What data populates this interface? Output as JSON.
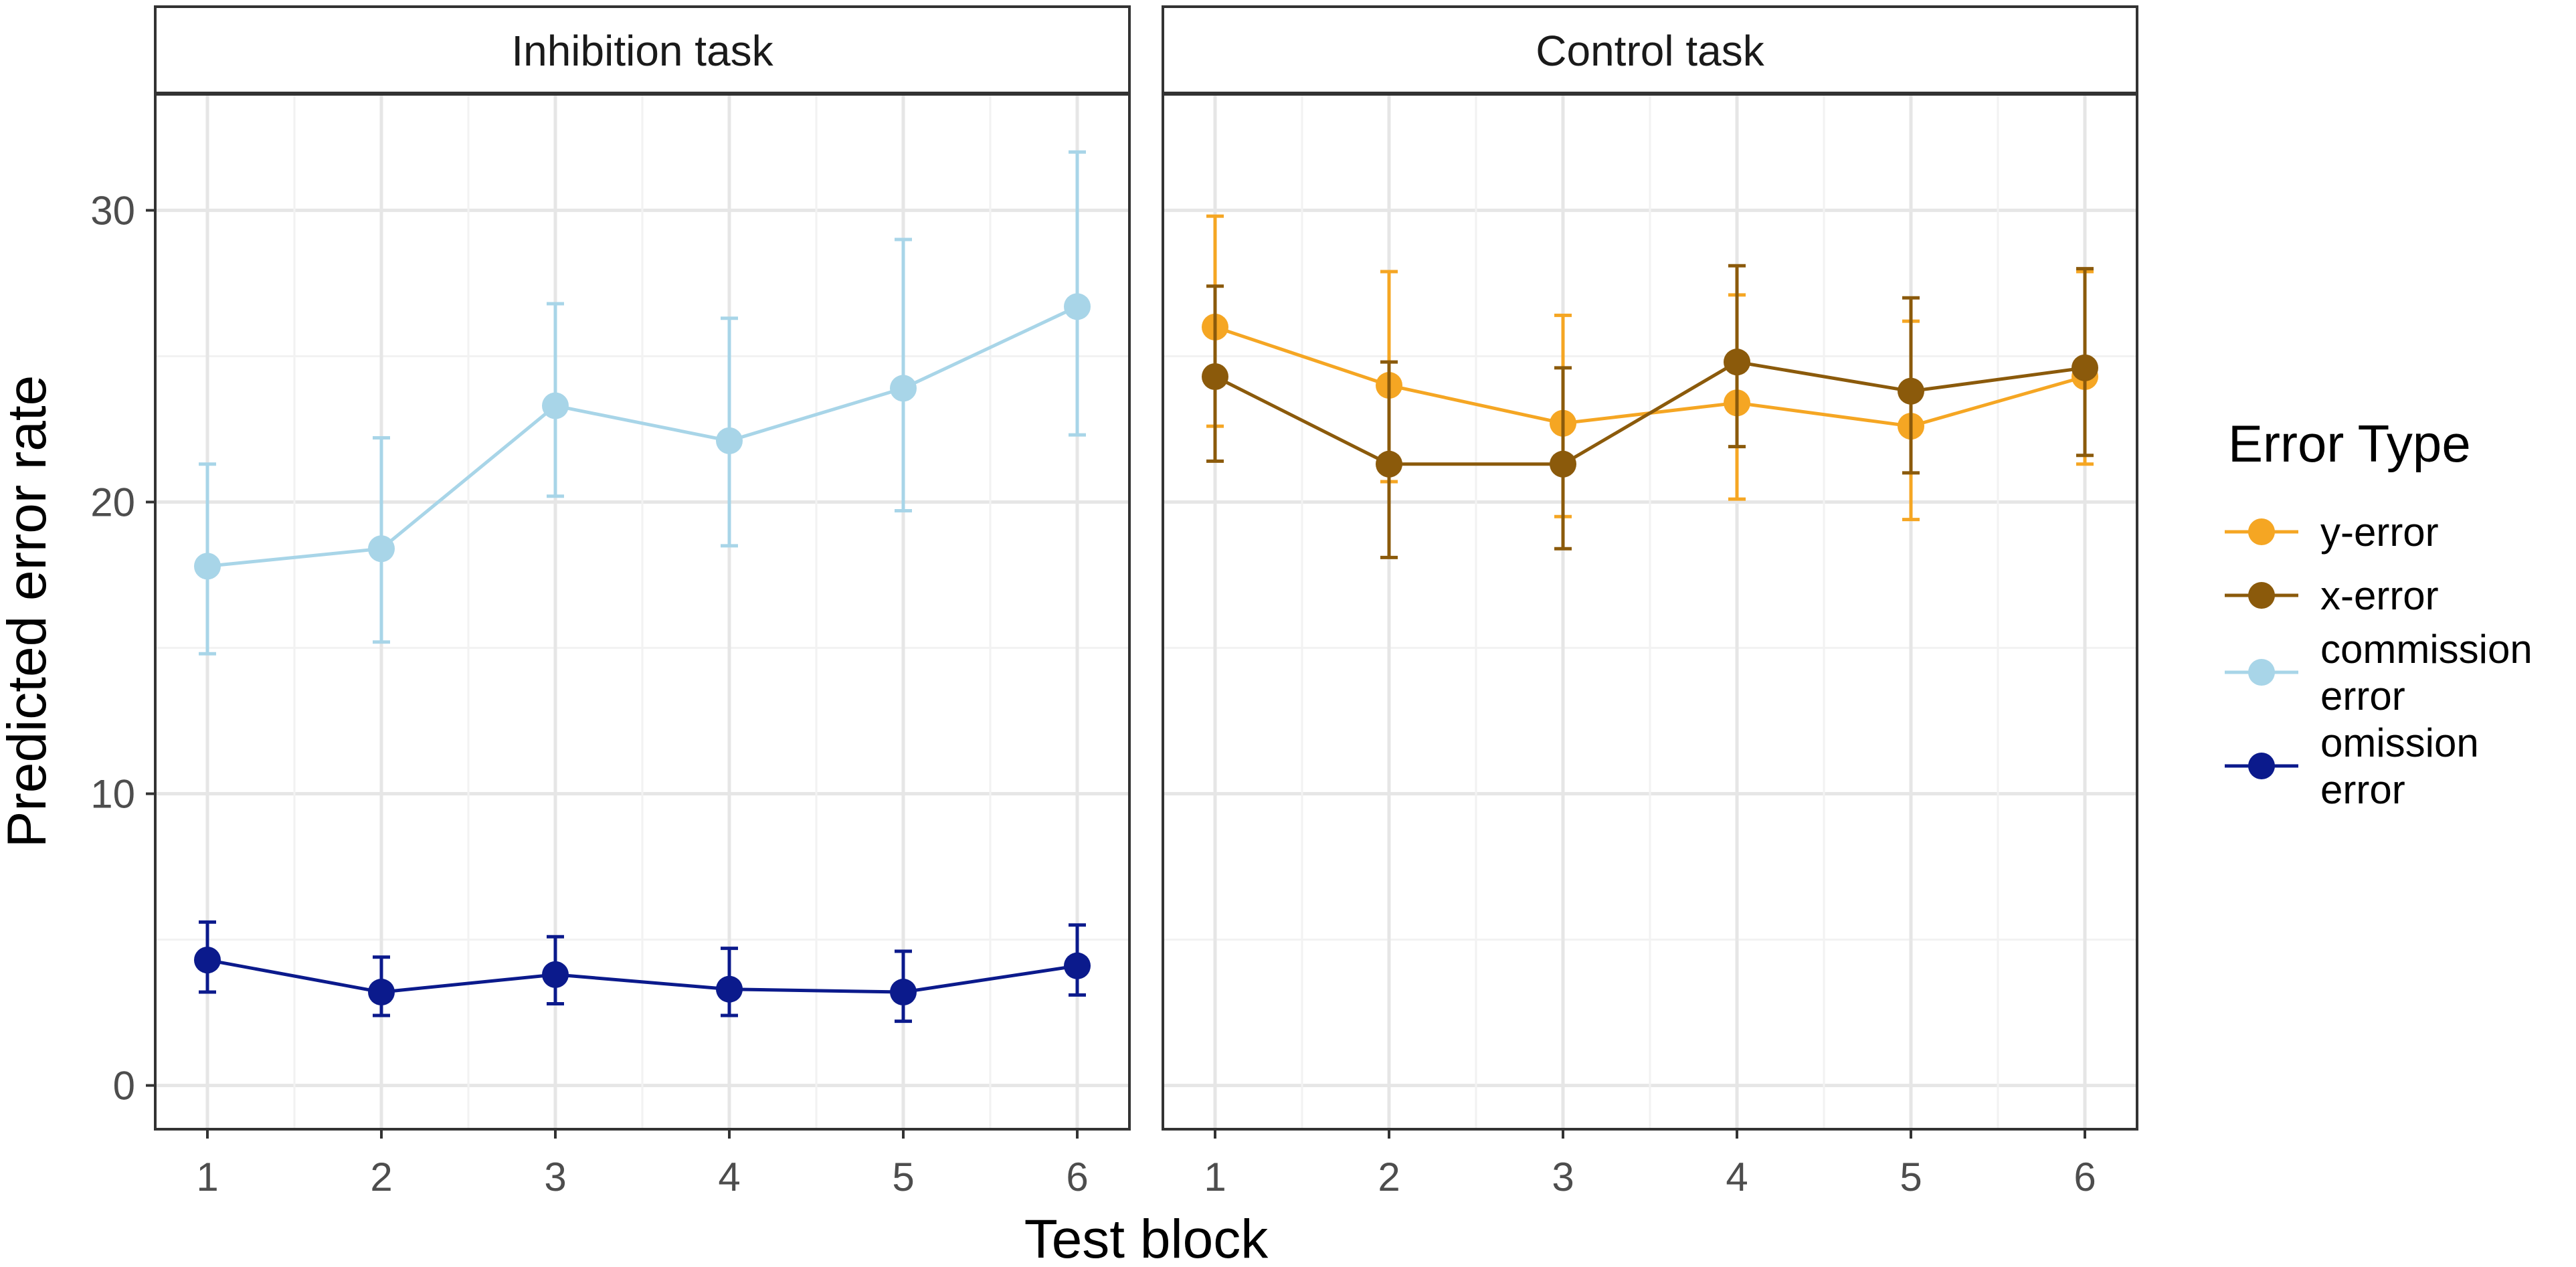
{
  "chart_data": {
    "type": "line",
    "xlabel": "Test block",
    "ylabel": "Predicted error rate",
    "ylim": [
      -1.5,
      34
    ],
    "y_ticks": [
      0,
      10,
      20,
      30
    ],
    "x_ticks": [
      1,
      2,
      3,
      4,
      5,
      6
    ],
    "xlim": [
      0.7,
      6.3
    ],
    "grid": true,
    "legend": {
      "title": "Error Type",
      "placement": "right",
      "entries": [
        {
          "key": "y-error",
          "lines": [
            "y-error"
          ],
          "color": "#F5A623"
        },
        {
          "key": "x-error",
          "lines": [
            "x-error"
          ],
          "color": "#8B5A0B"
        },
        {
          "key": "commission",
          "lines": [
            "commission",
            "error"
          ],
          "color": "#A8D5E8"
        },
        {
          "key": "omission",
          "lines": [
            "omission",
            "error"
          ],
          "color": "#0B1A8C"
        }
      ]
    },
    "panels": [
      {
        "title": "Inhibition task",
        "series": [
          {
            "name": "commission error",
            "key": "commission",
            "color": "#A8D5E8",
            "x": [
              1,
              2,
              3,
              4,
              5,
              6
            ],
            "values": [
              17.8,
              18.4,
              23.3,
              22.1,
              23.9,
              26.7
            ],
            "lower": [
              14.8,
              15.2,
              20.2,
              18.5,
              19.7,
              22.3
            ],
            "upper": [
              21.3,
              22.2,
              26.8,
              26.3,
              29.0,
              32.0
            ]
          },
          {
            "name": "omission error",
            "key": "omission",
            "color": "#0B1A8C",
            "x": [
              1,
              2,
              3,
              4,
              5,
              6
            ],
            "values": [
              4.3,
              3.2,
              3.8,
              3.3,
              3.2,
              4.1
            ],
            "lower": [
              3.2,
              2.4,
              2.8,
              2.4,
              2.2,
              3.1
            ],
            "upper": [
              5.6,
              4.4,
              5.1,
              4.7,
              4.6,
              5.5
            ]
          }
        ]
      },
      {
        "title": "Control task",
        "series": [
          {
            "name": "y-error",
            "key": "y-error",
            "color": "#F5A623",
            "x": [
              1,
              2,
              3,
              4,
              5,
              6
            ],
            "values": [
              26.0,
              24.0,
              22.7,
              23.4,
              22.6,
              24.3
            ],
            "lower": [
              22.6,
              20.7,
              19.5,
              20.1,
              19.4,
              21.3
            ],
            "upper": [
              29.8,
              27.9,
              26.4,
              27.1,
              26.2,
              27.9
            ]
          },
          {
            "name": "x-error",
            "key": "x-error",
            "color": "#8B5A0B",
            "x": [
              1,
              2,
              3,
              4,
              5,
              6
            ],
            "values": [
              24.3,
              21.3,
              21.3,
              24.8,
              23.8,
              24.6
            ],
            "lower": [
              21.4,
              18.1,
              18.4,
              21.9,
              21.0,
              21.6
            ],
            "upper": [
              27.4,
              24.8,
              24.6,
              28.1,
              27.0,
              28.0
            ]
          }
        ]
      }
    ]
  }
}
